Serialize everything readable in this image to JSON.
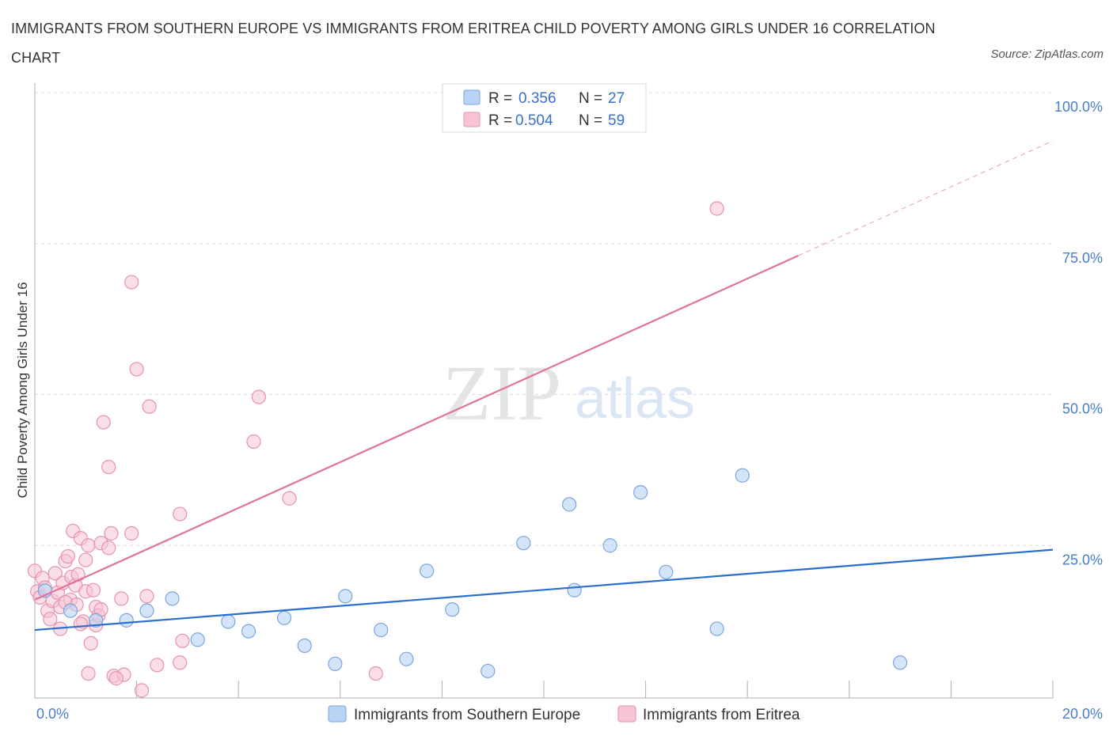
{
  "title": "IMMIGRANTS FROM SOUTHERN EUROPE VS IMMIGRANTS FROM ERITREA CHILD POVERTY AMONG GIRLS UNDER 16 CORRELATION CHART",
  "source": "Source: ZipAtlas.com",
  "colors": {
    "blue_fill": "#b9d3f5",
    "blue_stroke": "#7aa6e0",
    "blue_line": "#2a6fcc",
    "pink_fill": "#f7c4d3",
    "pink_stroke": "#e792ae",
    "pink_line": "#e0739a",
    "grid": "#dcdcdc",
    "tick_text": "#4a7ec9"
  },
  "legend": {
    "rows": [
      {
        "r_label": "R =",
        "r_value": "0.356",
        "n_label": "N =",
        "n_value": "27"
      },
      {
        "r_label": "R =",
        "r_value": "0.504",
        "n_label": "N =",
        "n_value": "59"
      }
    ]
  },
  "watermark": {
    "zip": "ZIP",
    "atlas": "atlas"
  },
  "chart_data": {
    "type": "scatter",
    "title": "IMMIGRANTS FROM SOUTHERN EUROPE VS IMMIGRANTS FROM ERITREA CHILD POVERTY AMONG GIRLS UNDER 16 CORRELATION CHART",
    "xlabel": "",
    "ylabel": "Child Poverty Among Girls Under 16",
    "xlim": [
      0,
      20
    ],
    "ylim": [
      0,
      100
    ],
    "x_tick_labels": [
      "0.0%",
      "20.0%"
    ],
    "y_tick_labels": [
      "100.0%",
      "75.0%",
      "50.0%",
      "25.0%"
    ],
    "y_ticks": [
      100,
      75,
      50,
      25
    ],
    "grid": true,
    "legend_position": "top-center",
    "series": [
      {
        "name": "Immigrants from Southern Europe",
        "color": "#b9d3f5",
        "trend": {
          "x": [
            0,
            20
          ],
          "y": [
            11.0,
            24.3
          ]
        },
        "points": [
          [
            0.2,
            17.5
          ],
          [
            0.7,
            14.2
          ],
          [
            1.2,
            12.6
          ],
          [
            1.8,
            12.6
          ],
          [
            2.2,
            14.2
          ],
          [
            2.7,
            16.2
          ],
          [
            3.2,
            9.4
          ],
          [
            3.8,
            12.4
          ],
          [
            4.2,
            10.8
          ],
          [
            4.9,
            13.0
          ],
          [
            5.3,
            8.4
          ],
          [
            5.9,
            5.4
          ],
          [
            6.1,
            16.6
          ],
          [
            6.8,
            11.0
          ],
          [
            7.3,
            6.2
          ],
          [
            7.7,
            20.8
          ],
          [
            8.2,
            14.4
          ],
          [
            8.9,
            4.2
          ],
          [
            9.6,
            25.4
          ],
          [
            10.5,
            31.8
          ],
          [
            10.6,
            17.6
          ],
          [
            11.3,
            25.0
          ],
          [
            11.9,
            33.8
          ],
          [
            12.4,
            20.6
          ],
          [
            13.4,
            11.2
          ],
          [
            13.9,
            36.6
          ],
          [
            17.0,
            5.6
          ]
        ]
      },
      {
        "name": "Immigrants from Eritrea",
        "color": "#f7c4d3",
        "trend": {
          "x": [
            0,
            15
          ],
          "y": [
            16.0,
            73.0
          ]
        },
        "trend_dashed": {
          "x": [
            15,
            20
          ],
          "y": [
            73.0,
            92.0
          ]
        },
        "points": [
          [
            0.0,
            20.8
          ],
          [
            0.05,
            17.4
          ],
          [
            0.1,
            16.4
          ],
          [
            0.15,
            19.6
          ],
          [
            0.25,
            14.2
          ],
          [
            0.3,
            12.8
          ],
          [
            0.35,
            15.8
          ],
          [
            0.4,
            20.4
          ],
          [
            0.45,
            17.2
          ],
          [
            0.5,
            14.8
          ],
          [
            0.5,
            11.2
          ],
          [
            0.55,
            18.8
          ],
          [
            0.6,
            22.4
          ],
          [
            0.65,
            23.2
          ],
          [
            0.7,
            16.0
          ],
          [
            0.72,
            19.8
          ],
          [
            0.75,
            27.4
          ],
          [
            0.8,
            18.4
          ],
          [
            0.82,
            15.2
          ],
          [
            0.85,
            20.2
          ],
          [
            0.9,
            26.2
          ],
          [
            0.95,
            12.4
          ],
          [
            1.0,
            22.6
          ],
          [
            1.0,
            17.4
          ],
          [
            1.05,
            3.8
          ],
          [
            1.05,
            25.0
          ],
          [
            1.1,
            8.8
          ],
          [
            1.15,
            17.6
          ],
          [
            1.2,
            14.8
          ],
          [
            1.2,
            11.8
          ],
          [
            1.25,
            13.4
          ],
          [
            1.3,
            25.4
          ],
          [
            1.3,
            14.4
          ],
          [
            1.35,
            45.4
          ],
          [
            1.45,
            38.0
          ],
          [
            1.45,
            24.6
          ],
          [
            1.5,
            27.0
          ],
          [
            1.55,
            3.4
          ],
          [
            1.7,
            16.2
          ],
          [
            1.75,
            3.6
          ],
          [
            1.9,
            68.6
          ],
          [
            1.9,
            27.0
          ],
          [
            2.0,
            54.2
          ],
          [
            2.1,
            1.0
          ],
          [
            2.2,
            16.6
          ],
          [
            2.25,
            48.0
          ],
          [
            2.4,
            5.2
          ],
          [
            2.85,
            5.6
          ],
          [
            2.85,
            30.2
          ],
          [
            2.9,
            9.2
          ],
          [
            4.3,
            42.2
          ],
          [
            4.4,
            49.6
          ],
          [
            5.0,
            32.8
          ],
          [
            6.7,
            3.8
          ],
          [
            13.4,
            80.8
          ],
          [
            0.2,
            18.0
          ],
          [
            0.6,
            15.6
          ],
          [
            0.9,
            12.0
          ],
          [
            1.6,
            3.0
          ]
        ]
      }
    ]
  },
  "bottom_legend": {
    "items": [
      {
        "label": "Immigrants from Southern Europe"
      },
      {
        "label": "Immigrants from Eritrea"
      }
    ]
  }
}
